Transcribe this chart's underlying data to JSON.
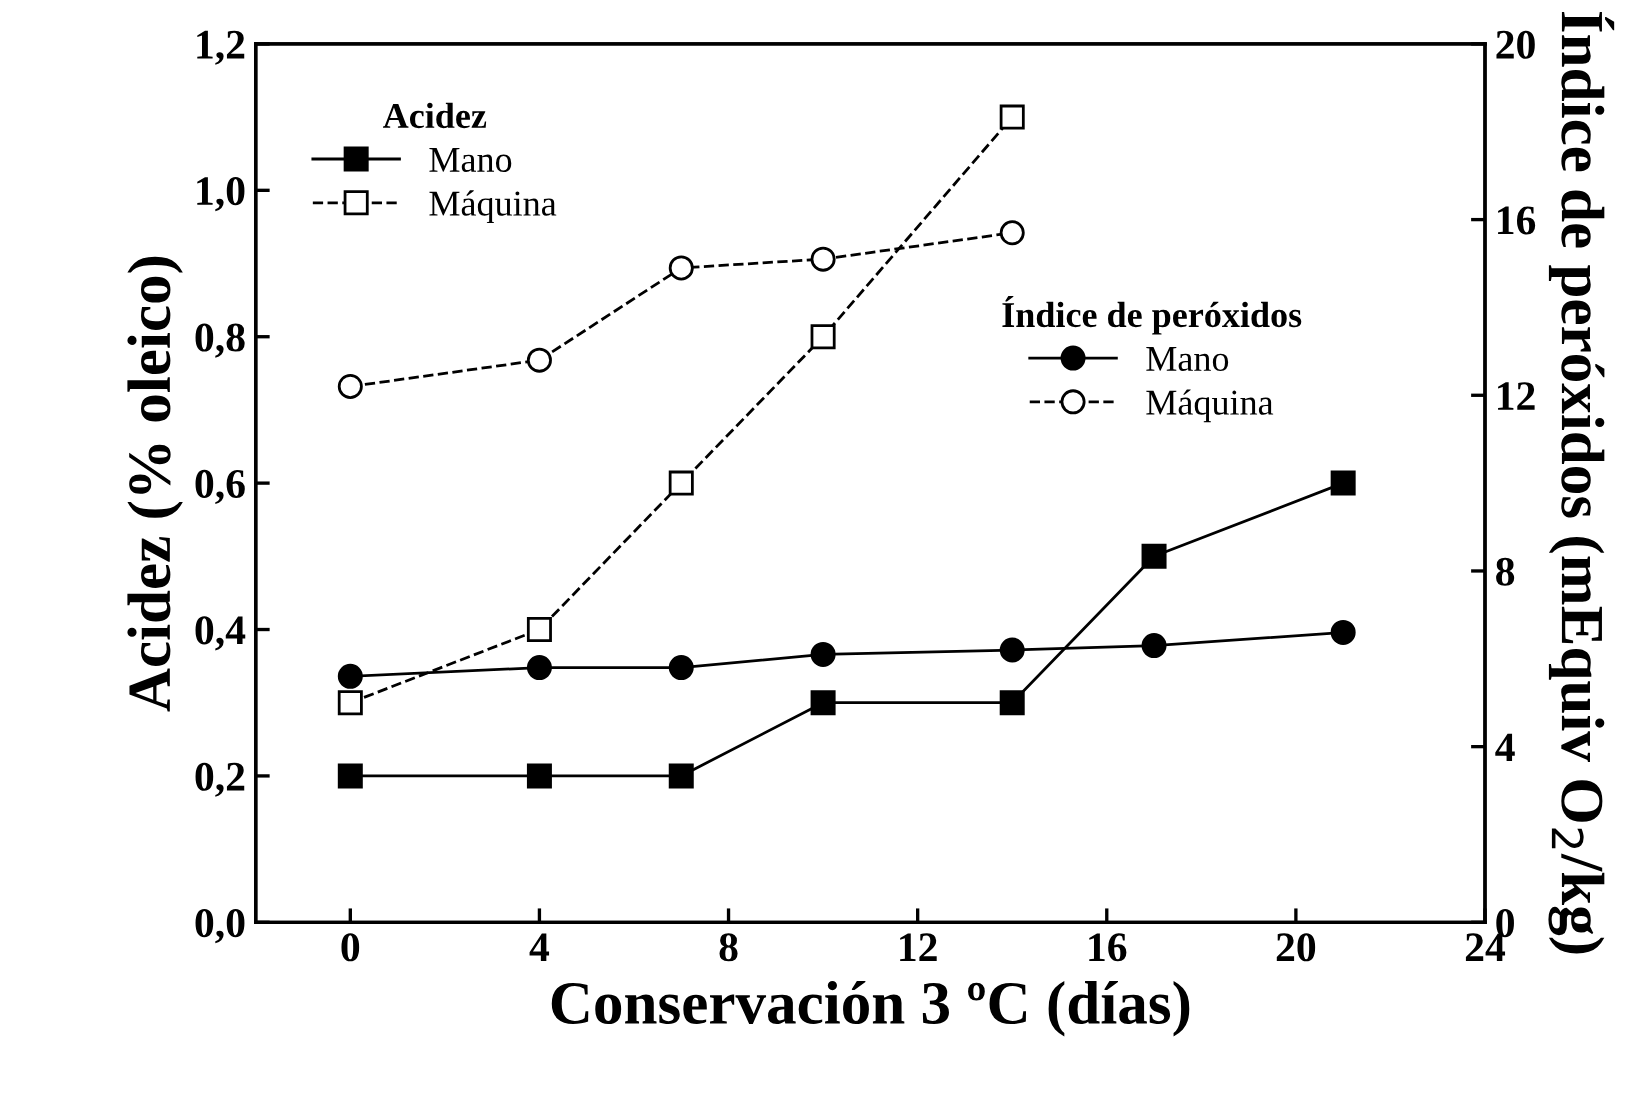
{
  "chart_data": {
    "type": "line",
    "xlabel": "Conservación 3 ºC (días)",
    "ylabel": "Acidez (% oleico)",
    "y2label": "Índice de peróxidos (mEquiv O$_{2}$/kg)",
    "legend_title": [
      "Acidez",
      "Índice de peróxidos"
    ],
    "legend": "top left",
    "grid": false,
    "xlim": [
      -2,
      24
    ],
    "xticks": [
      0,
      4,
      8,
      12,
      16,
      20,
      24
    ],
    "ylim": [
      0,
      1.2
    ],
    "yticks": [
      {
        "value": 0,
        "label": "0,0"
      },
      {
        "value": 0.2,
        "label": "0,2"
      },
      {
        "value": 0.4,
        "label": "0,4"
      },
      {
        "value": 0.6,
        "label": "0,6"
      },
      {
        "value": 0.8,
        "label": "0,8"
      },
      {
        "value": 1.0,
        "label": "1,0"
      },
      {
        "value": 1.2,
        "label": "1,2"
      }
    ],
    "y2lim": [
      0,
      20
    ],
    "y2ticks": [
      0,
      4,
      8,
      12,
      16,
      20
    ],
    "series": [
      {
        "name": "Mano",
        "color": "#000000",
        "marker": "square",
        "line_style": "solid",
        "x": [
          0,
          4,
          7,
          10,
          14,
          17,
          21
        ],
        "values": [
          0.2,
          0.2,
          0.2,
          0.3,
          0.3,
          0.5,
          0.6
        ]
      },
      {
        "name": "Máquina",
        "color": "#000000",
        "marker": "square",
        "line_style": "dashed",
        "x": [
          0,
          4,
          7,
          10,
          14
        ],
        "values": [
          0.3,
          0.4,
          0.6,
          0.8,
          1.1
        ]
      },
      {
        "name": "Mano",
        "color": "#000000",
        "marker": "circle",
        "line_style": "solid",
        "axis": "y2",
        "x": [
          0,
          4,
          7,
          10,
          14,
          17,
          21
        ],
        "values": [
          5.6,
          5.8,
          5.8,
          6.1,
          6.2,
          6.3,
          6.6
        ]
      },
      {
        "name": "Máquina",
        "color": "#000000",
        "marker": "circle",
        "line_style": "dashed",
        "axis": "y2",
        "x": [
          0,
          4,
          7,
          10,
          14
        ],
        "values": [
          12.2,
          12.8,
          14.9,
          15.1,
          15.7
        ]
      }
    ]
  }
}
